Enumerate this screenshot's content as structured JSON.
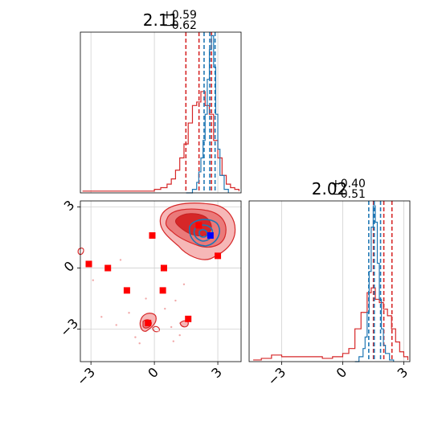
{
  "chart_data": [
    {
      "panel": "top-left marginal",
      "type": "line",
      "title_value": "2.11",
      "title_plus": "+0.59",
      "title_minus": "−0.62",
      "xlim": [
        -3.5,
        4.1
      ],
      "grid": true,
      "series": [
        {
          "color": "#d62728",
          "x": [
            -3.4,
            -3.0,
            -2.5,
            -2.0,
            -1.5,
            -1.0,
            -0.5,
            0.0,
            0.3,
            0.6,
            0.8,
            1.0,
            1.2,
            1.4,
            1.6,
            1.8,
            2.0,
            2.2,
            2.4,
            2.6,
            2.8,
            3.0,
            3.2,
            3.4,
            3.6,
            3.8,
            4.0
          ],
          "y": [
            0.01,
            0.01,
            0.01,
            0.01,
            0.01,
            0.01,
            0.01,
            0.02,
            0.03,
            0.05,
            0.08,
            0.13,
            0.2,
            0.28,
            0.4,
            0.5,
            0.52,
            0.58,
            0.5,
            0.45,
            0.3,
            0.2,
            0.1,
            0.05,
            0.03,
            0.02,
            0.01
          ],
          "quantiles": [
            1.49,
            2.11,
            2.7
          ]
        },
        {
          "color": "#1f77b4",
          "x": [
            1.5,
            1.8,
            2.0,
            2.1,
            2.2,
            2.3,
            2.4,
            2.5,
            2.6,
            2.7,
            2.8,
            2.9,
            3.0,
            3.1,
            3.3,
            3.5
          ],
          "y": [
            0.0,
            0.02,
            0.06,
            0.12,
            0.2,
            0.3,
            0.45,
            0.65,
            0.82,
            0.9,
            0.72,
            0.45,
            0.25,
            0.1,
            0.02,
            0.0
          ],
          "quantiles": [
            2.35,
            2.62,
            2.87
          ]
        }
      ]
    },
    {
      "panel": "bottom-left 2D",
      "type": "scatter",
      "xlim": [
        -3.5,
        4.1
      ],
      "ylim": [
        -4.6,
        3.3
      ],
      "xticks": [
        "−3",
        "0",
        "3"
      ],
      "yticks": [
        "−3",
        "0",
        "3"
      ],
      "grid": true,
      "markers": [
        {
          "color": "#ff0000",
          "x": -3.1,
          "y": 0.2
        },
        {
          "color": "#ff0000",
          "x": -2.2,
          "y": 0.0
        },
        {
          "color": "#ff0000",
          "x": -1.3,
          "y": -1.1
        },
        {
          "color": "#ff0000",
          "x": -0.1,
          "y": 1.6
        },
        {
          "color": "#ff0000",
          "x": 0.4,
          "y": -1.1
        },
        {
          "color": "#ff0000",
          "x": 0.45,
          "y": 0.0
        },
        {
          "color": "#ff0000",
          "x": -0.3,
          "y": -2.7
        },
        {
          "color": "#ff0000",
          "x": 1.6,
          "y": -2.5
        },
        {
          "color": "#ff0000",
          "x": 2.1,
          "y": 2.1
        },
        {
          "color": "#ff0000",
          "x": 3.0,
          "y": 0.6
        },
        {
          "color": "#0000ff",
          "x": 2.65,
          "y": 1.6
        }
      ]
    },
    {
      "panel": "bottom-right marginal",
      "type": "line",
      "title_value": "2.02",
      "title_plus": "+0.40",
      "title_minus": "−0.51",
      "xlim": [
        -4.6,
        3.3
      ],
      "xticks": [
        "−3",
        "0",
        "3"
      ],
      "grid": true,
      "series": [
        {
          "color": "#d62728",
          "x": [
            -4.4,
            -4.0,
            -3.5,
            -3.0,
            -2.5,
            -2.0,
            -1.5,
            -1.0,
            -0.5,
            0.0,
            0.3,
            0.6,
            0.9,
            1.2,
            1.4,
            1.6,
            1.8,
            2.0,
            2.2,
            2.4,
            2.6,
            2.8,
            3.0,
            3.2
          ],
          "y": [
            0.01,
            0.02,
            0.04,
            0.03,
            0.03,
            0.03,
            0.03,
            0.02,
            0.03,
            0.05,
            0.08,
            0.2,
            0.3,
            0.42,
            0.45,
            0.38,
            0.36,
            0.32,
            0.28,
            0.2,
            0.12,
            0.06,
            0.03,
            0.01
          ],
          "quantiles": [
            1.51,
            2.02,
            2.42
          ]
        },
        {
          "color": "#1f77b4",
          "x": [
            0.6,
            0.8,
            1.0,
            1.1,
            1.2,
            1.3,
            1.4,
            1.5,
            1.6,
            1.7,
            1.8,
            1.9,
            2.0,
            2.1,
            2.3,
            2.5
          ],
          "y": [
            0.0,
            0.03,
            0.08,
            0.15,
            0.3,
            0.55,
            0.82,
            0.95,
            0.85,
            0.6,
            0.38,
            0.2,
            0.1,
            0.05,
            0.01,
            0.0
          ],
          "quantiles": [
            1.28,
            1.55,
            1.86
          ]
        }
      ]
    }
  ]
}
